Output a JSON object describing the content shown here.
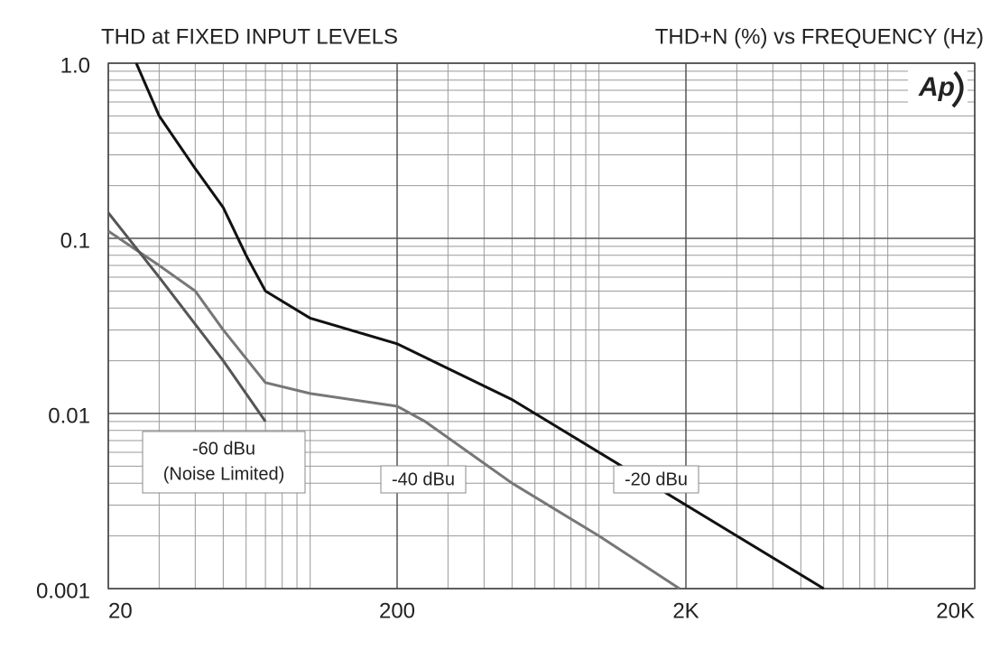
{
  "chart_data": {
    "type": "line",
    "title": "THD at FIXED INPUT LEVELS",
    "subtitle": "THD+N (%) vs FREQUENCY (Hz)",
    "logo": "Ap",
    "x_log": true,
    "y_log": true,
    "grid": true,
    "xlim": [
      20,
      20000
    ],
    "xticks": [
      {
        "value": 20,
        "label": "20"
      },
      200,
      {
        "value": 2000,
        "label": "2K"
      },
      {
        "value": 20000,
        "label": "20K"
      }
    ],
    "ylim": [
      0.001,
      1
    ],
    "yticks": [
      {
        "value": 1,
        "label": "1.0"
      },
      0.1,
      0.01,
      0.001
    ],
    "annotation": "(Noise Limited)",
    "series": [
      {
        "name": "-20 dBu",
        "color": "#111111",
        "x": [
          25,
          30,
          40,
          50,
          60,
          70,
          100,
          200,
          500,
          1000,
          2000,
          6000
        ],
        "values": [
          1.0,
          0.5,
          0.25,
          0.15,
          0.08,
          0.05,
          0.035,
          0.025,
          0.012,
          0.006,
          0.003,
          0.001
        ]
      },
      {
        "name": "-40 dBu",
        "color": "#777777",
        "x": [
          20,
          30,
          40,
          50,
          70,
          100,
          200,
          250,
          500,
          1000,
          1900
        ],
        "values": [
          0.11,
          0.07,
          0.05,
          0.03,
          0.015,
          0.013,
          0.011,
          0.009,
          0.004,
          0.002,
          0.001
        ]
      },
      {
        "name": "-60 dBu",
        "color": "#555555",
        "x": [
          20,
          30,
          50,
          70
        ],
        "values": [
          0.14,
          0.06,
          0.02,
          0.009
        ]
      }
    ]
  }
}
